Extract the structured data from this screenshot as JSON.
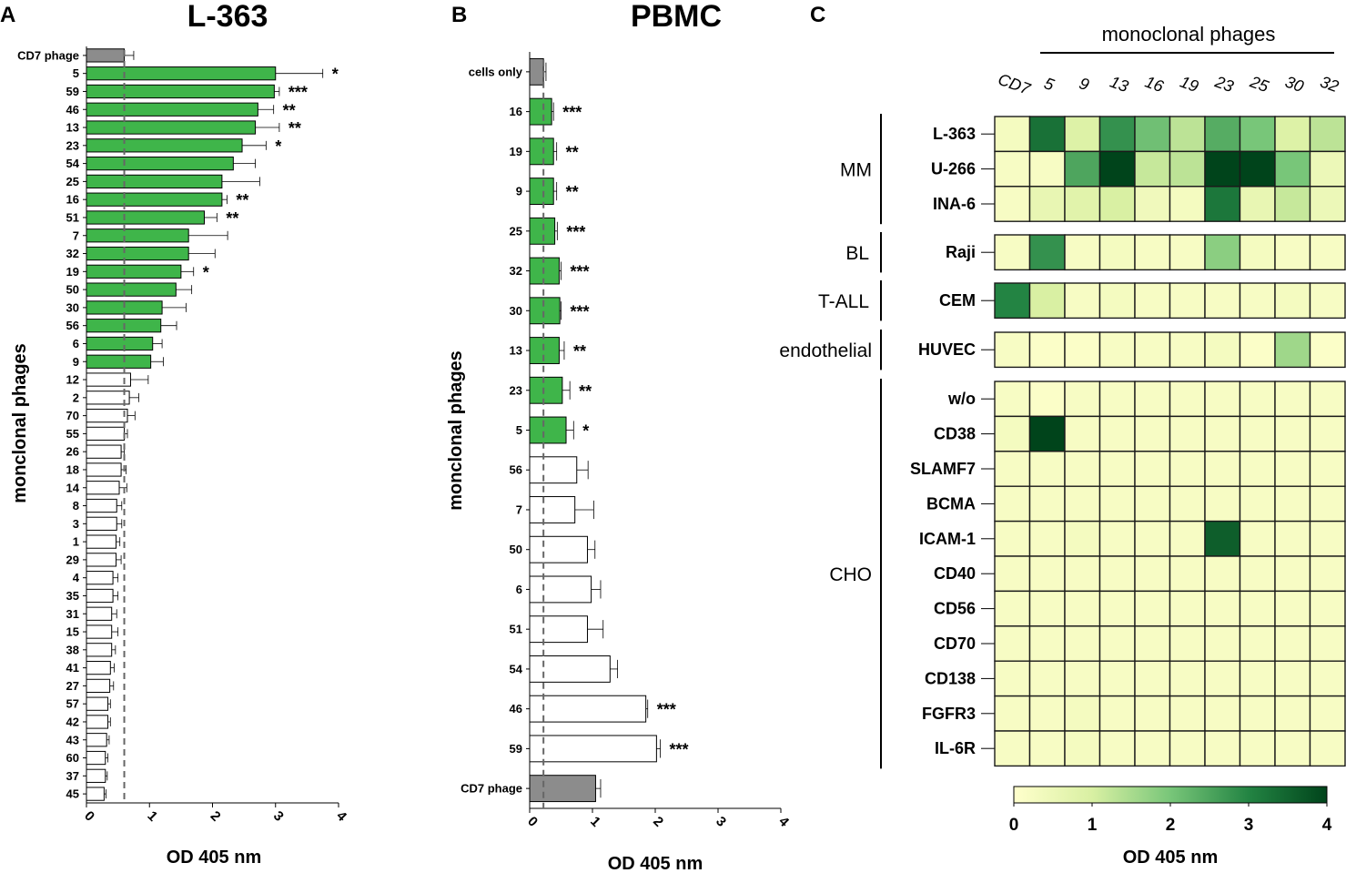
{
  "chart_data": [
    {
      "panel": "A",
      "type": "bar",
      "orientation": "horizontal",
      "title": "L-363",
      "xlabel": "OD 405 nm",
      "ylabel": "monclonal phages",
      "xlim": [
        0,
        4
      ],
      "xticks": [
        "0",
        "1",
        "2",
        "3",
        "4"
      ],
      "reference_line": 0.6,
      "categories": [
        "CD7 phage",
        "5",
        "59",
        "46",
        "13",
        "23",
        "54",
        "25",
        "16",
        "51",
        "7",
        "32",
        "19",
        "50",
        "30",
        "56",
        "6",
        "9",
        "12",
        "2",
        "70",
        "55",
        "26",
        "18",
        "14",
        "8",
        "3",
        "1",
        "29",
        "4",
        "35",
        "31",
        "15",
        "38",
        "41",
        "27",
        "57",
        "42",
        "43",
        "60",
        "37",
        "45"
      ],
      "values": [
        0.6,
        3.0,
        2.98,
        2.72,
        2.68,
        2.47,
        2.33,
        2.15,
        2.15,
        1.87,
        1.62,
        1.62,
        1.5,
        1.42,
        1.2,
        1.18,
        1.05,
        1.02,
        0.7,
        0.68,
        0.65,
        0.6,
        0.55,
        0.55,
        0.52,
        0.48,
        0.48,
        0.47,
        0.47,
        0.42,
        0.42,
        0.4,
        0.4,
        0.4,
        0.38,
        0.37,
        0.34,
        0.34,
        0.32,
        0.3,
        0.3,
        0.28
      ],
      "errors": [
        0.15,
        0.75,
        0.08,
        0.25,
        0.38,
        0.38,
        0.35,
        0.6,
        0.08,
        0.2,
        0.62,
        0.42,
        0.2,
        0.25,
        0.38,
        0.25,
        0.15,
        0.2,
        0.28,
        0.15,
        0.12,
        0.05,
        0.05,
        0.08,
        0.12,
        0.08,
        0.08,
        0.06,
        0.08,
        0.08,
        0.08,
        0.08,
        0.1,
        0.06,
        0.06,
        0.06,
        0.04,
        0.04,
        0.04,
        0.04,
        0.03,
        0.03
      ],
      "kinds": [
        "control",
        "hit",
        "hit",
        "hit",
        "hit",
        "hit",
        "hit",
        "hit",
        "hit",
        "hit",
        "hit",
        "hit",
        "hit",
        "hit",
        "hit",
        "hit",
        "hit",
        "hit",
        "none",
        "none",
        "none",
        "none",
        "none",
        "none",
        "none",
        "none",
        "none",
        "none",
        "none",
        "none",
        "none",
        "none",
        "none",
        "none",
        "none",
        "none",
        "none",
        "none",
        "none",
        "none",
        "none",
        "none"
      ],
      "significance": [
        "",
        "*",
        "***",
        "**",
        "**",
        "*",
        "",
        "",
        "**",
        "**",
        "",
        "",
        "*",
        "",
        "",
        "",
        "",
        "",
        "",
        "",
        "",
        "",
        "",
        "",
        "",
        "",
        "",
        "",
        "",
        "",
        "",
        "",
        "",
        "",
        "",
        "",
        "",
        "",
        "",
        "",
        "",
        ""
      ]
    },
    {
      "panel": "B",
      "type": "bar",
      "orientation": "horizontal",
      "title": "PBMC",
      "xlabel": "OD 405 nm",
      "ylabel": "monclonal phages",
      "xlim": [
        0,
        4
      ],
      "xticks": [
        "0",
        "1",
        "2",
        "3",
        "4"
      ],
      "reference_line": 0.22,
      "categories": [
        "cells only",
        "16",
        "19",
        "9",
        "25",
        "32",
        "30",
        "13",
        "23",
        "5",
        "56",
        "7",
        "50",
        "6",
        "51",
        "54",
        "46",
        "59",
        "CD7 phage"
      ],
      "values": [
        0.22,
        0.35,
        0.38,
        0.38,
        0.4,
        0.47,
        0.48,
        0.47,
        0.52,
        0.58,
        0.75,
        0.72,
        0.92,
        0.98,
        0.92,
        1.28,
        1.85,
        2.02,
        1.05
      ],
      "errors": [
        0.04,
        0.03,
        0.05,
        0.05,
        0.04,
        0.03,
        0.02,
        0.08,
        0.12,
        0.12,
        0.18,
        0.3,
        0.12,
        0.15,
        0.25,
        0.12,
        0.03,
        0.06,
        0.08
      ],
      "kinds": [
        "control",
        "hit",
        "hit",
        "hit",
        "hit",
        "hit",
        "hit",
        "hit",
        "hit",
        "hit",
        "none",
        "none",
        "none",
        "none",
        "none",
        "none",
        "none",
        "none",
        "control"
      ],
      "significance": [
        "",
        "***",
        "**",
        "**",
        "***",
        "***",
        "***",
        "**",
        "**",
        "*",
        "",
        "",
        "",
        "",
        "",
        "",
        "***",
        "***",
        ""
      ]
    },
    {
      "panel": "C",
      "type": "heatmap",
      "title": "monoclonal phages",
      "columns": [
        "CD7",
        "5",
        "9",
        "13",
        "16",
        "19",
        "23",
        "25",
        "30",
        "32"
      ],
      "groups": [
        {
          "name": "MM",
          "rows": [
            "L-363",
            "U-266",
            "INA-6"
          ]
        },
        {
          "name": "BL",
          "rows": [
            "Raji"
          ]
        },
        {
          "name": "T-ALL",
          "rows": [
            "CEM"
          ]
        },
        {
          "name": "endothelial",
          "rows": [
            "HUVEC"
          ]
        },
        {
          "name": "CHO",
          "rows": [
            "w/o",
            "CD38",
            "SLAMF7",
            "BCMA",
            "ICAM-1",
            "CD40",
            "CD56",
            "CD70",
            "CD138",
            "FGFR3",
            "IL-6R"
          ]
        }
      ],
      "values": {
        "L-363": [
          0.3,
          3.3,
          0.9,
          2.8,
          2.1,
          1.3,
          2.4,
          2.0,
          0.9,
          1.3
        ],
        "U-266": [
          0.2,
          0.2,
          2.5,
          4.0,
          1.2,
          1.3,
          4.0,
          4.0,
          2.0,
          0.5
        ],
        "INA-6": [
          0.2,
          0.6,
          0.8,
          1.0,
          0.4,
          0.3,
          3.2,
          0.6,
          1.2,
          0.5
        ],
        "Raji": [
          0.2,
          2.8,
          0.2,
          0.3,
          0.2,
          0.2,
          1.8,
          0.3,
          0.2,
          0.2
        ],
        "CEM": [
          3.0,
          1.0,
          0.2,
          0.3,
          0.2,
          0.2,
          0.2,
          0.2,
          0.3,
          0.2
        ],
        "HUVEC": [
          0.2,
          0.1,
          0.1,
          0.2,
          0.2,
          0.2,
          0.3,
          0.1,
          1.6,
          0.1
        ],
        "w/o": [
          0.2,
          0.1,
          0.2,
          0.2,
          0.2,
          0.2,
          0.2,
          0.2,
          0.2,
          0.2
        ],
        "CD38": [
          0.3,
          4.0,
          0.2,
          0.2,
          0.2,
          0.2,
          0.2,
          0.2,
          0.2,
          0.2
        ],
        "SLAMF7": [
          0.2,
          0.2,
          0.2,
          0.2,
          0.2,
          0.2,
          0.2,
          0.2,
          0.2,
          0.2
        ],
        "BCMA": [
          0.2,
          0.2,
          0.2,
          0.2,
          0.2,
          0.2,
          0.2,
          0.2,
          0.2,
          0.2
        ],
        "ICAM-1": [
          0.2,
          0.2,
          0.3,
          0.2,
          0.2,
          0.2,
          3.6,
          0.2,
          0.2,
          0.2
        ],
        "CD40": [
          0.2,
          0.2,
          0.2,
          0.2,
          0.2,
          0.2,
          0.2,
          0.2,
          0.2,
          0.2
        ],
        "CD56": [
          0.2,
          0.2,
          0.2,
          0.2,
          0.2,
          0.2,
          0.2,
          0.2,
          0.2,
          0.2
        ],
        "CD70": [
          0.2,
          0.2,
          0.2,
          0.2,
          0.2,
          0.2,
          0.2,
          0.2,
          0.2,
          0.2
        ],
        "CD138": [
          0.2,
          0.2,
          0.2,
          0.2,
          0.2,
          0.2,
          0.2,
          0.2,
          0.2,
          0.2
        ],
        "FGFR3": [
          0.2,
          0.2,
          0.3,
          0.2,
          0.2,
          0.2,
          0.2,
          0.2,
          0.2,
          0.2
        ],
        "IL-6R": [
          0.2,
          0.2,
          0.3,
          0.2,
          0.2,
          0.2,
          0.2,
          0.2,
          0.2,
          0.2
        ]
      },
      "colorbar": {
        "label": "OD 405 nm",
        "range": [
          0,
          4
        ],
        "ticks": [
          "0",
          "1",
          "2",
          "3",
          "4"
        ]
      }
    }
  ],
  "colors": {
    "hit": "#3fb54a",
    "control": "#8c8c8c",
    "none": "#ffffff",
    "heat_low": "#ffffcc",
    "heat_mid": "#78c679",
    "heat_high": "#00441b"
  }
}
